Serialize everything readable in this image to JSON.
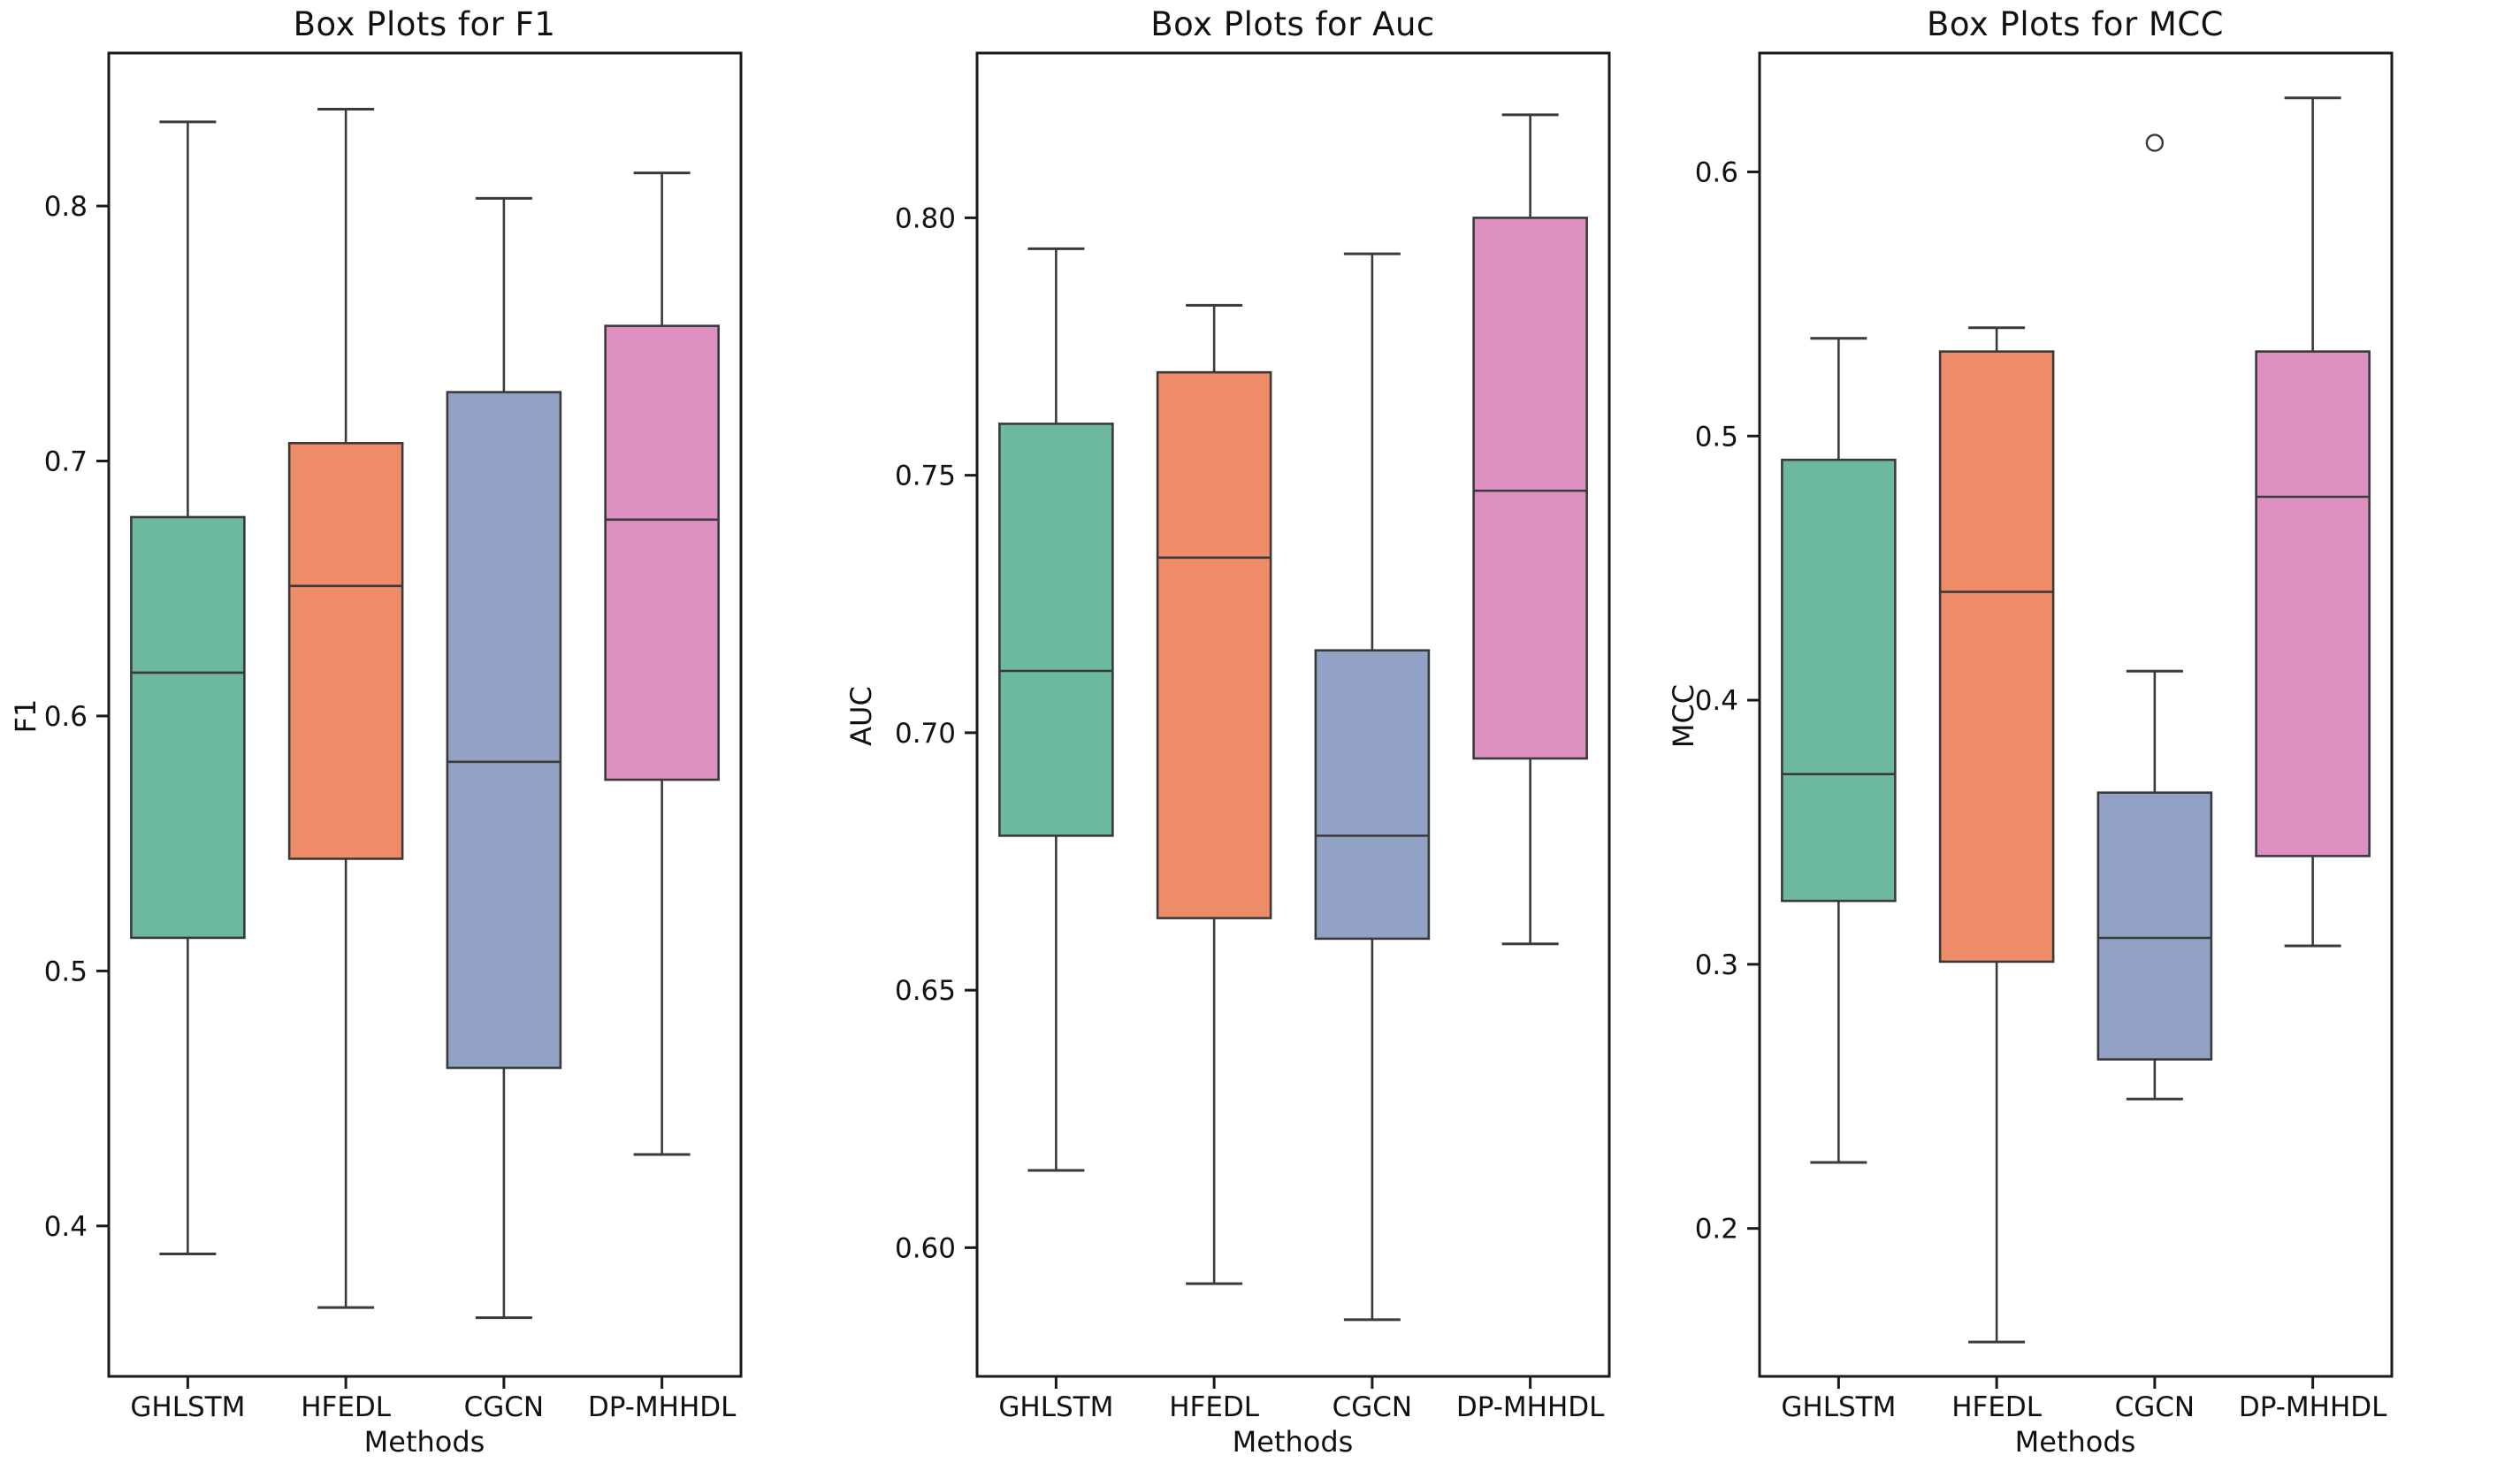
{
  "figure": {
    "background": "#ffffff",
    "spine_color": "#1a1a1a",
    "element_color": "#3a3a3a",
    "text_color": "#111111",
    "palette": {
      "GHLSTM": "#6db9a0",
      "HFEDL": "#ef8c68",
      "CGCN": "#92a2c4",
      "DP-MHHDL": "#de91c1"
    }
  },
  "chart_data": [
    {
      "type": "box",
      "title": "Box Plots for F1",
      "ylabel": "F1",
      "xlabel": "Methods",
      "grid": false,
      "legend": "none",
      "categories": [
        "GHLSTM",
        "HFEDL",
        "CGCN",
        "DP-MHHDL"
      ],
      "ylim": [
        0.341,
        0.86
      ],
      "yticks": [
        0.8,
        0.7,
        0.6,
        0.5,
        0.4
      ],
      "ytick_labels": [
        "0.8",
        "0.7",
        "0.6",
        "0.5",
        "0.4"
      ],
      "series": [
        {
          "name": "GHLSTM",
          "whislo": 0.389,
          "q1": 0.513,
          "med": 0.617,
          "q3": 0.678,
          "whishi": 0.833,
          "outliers": []
        },
        {
          "name": "HFEDL",
          "whislo": 0.368,
          "q1": 0.544,
          "med": 0.651,
          "q3": 0.707,
          "whishi": 0.838,
          "outliers": []
        },
        {
          "name": "CGCN",
          "whislo": 0.364,
          "q1": 0.462,
          "med": 0.582,
          "q3": 0.727,
          "whishi": 0.803,
          "outliers": []
        },
        {
          "name": "DP-MHHDL",
          "whislo": 0.428,
          "q1": 0.575,
          "med": 0.677,
          "q3": 0.753,
          "whishi": 0.813,
          "outliers": []
        }
      ]
    },
    {
      "type": "box",
      "title": "Box Plots for Auc",
      "ylabel": "AUC",
      "xlabel": "Methods",
      "grid": false,
      "legend": "none",
      "categories": [
        "GHLSTM",
        "HFEDL",
        "CGCN",
        "DP-MHHDL"
      ],
      "ylim": [
        0.575,
        0.832
      ],
      "yticks": [
        0.8,
        0.75,
        0.7,
        0.65,
        0.6
      ],
      "ytick_labels": [
        "0.80",
        "0.75",
        "0.70",
        "0.65",
        "0.60"
      ],
      "series": [
        {
          "name": "GHLSTM",
          "whislo": 0.615,
          "q1": 0.68,
          "med": 0.712,
          "q3": 0.76,
          "whishi": 0.794,
          "outliers": []
        },
        {
          "name": "HFEDL",
          "whislo": 0.593,
          "q1": 0.664,
          "med": 0.734,
          "q3": 0.77,
          "whishi": 0.783,
          "outliers": []
        },
        {
          "name": "CGCN",
          "whislo": 0.586,
          "q1": 0.66,
          "med": 0.68,
          "q3": 0.716,
          "whishi": 0.793,
          "outliers": []
        },
        {
          "name": "DP-MHHDL",
          "whislo": 0.659,
          "q1": 0.695,
          "med": 0.747,
          "q3": 0.8,
          "whishi": 0.82,
          "outliers": []
        }
      ]
    },
    {
      "type": "box",
      "title": "Box Plots for MCC",
      "ylabel": "MCC",
      "xlabel": "Methods",
      "grid": false,
      "legend": "none",
      "categories": [
        "GHLSTM",
        "HFEDL",
        "CGCN",
        "DP-MHHDL"
      ],
      "ylim": [
        0.144,
        0.645
      ],
      "yticks": [
        0.6,
        0.5,
        0.4,
        0.3,
        0.2
      ],
      "ytick_labels": [
        "0.6",
        "0.5",
        "0.4",
        "0.3",
        "0.2"
      ],
      "series": [
        {
          "name": "GHLSTM",
          "whislo": 0.225,
          "q1": 0.324,
          "med": 0.372,
          "q3": 0.491,
          "whishi": 0.537,
          "outliers": []
        },
        {
          "name": "HFEDL",
          "whislo": 0.157,
          "q1": 0.301,
          "med": 0.441,
          "q3": 0.532,
          "whishi": 0.541,
          "outliers": []
        },
        {
          "name": "CGCN",
          "whislo": 0.249,
          "q1": 0.264,
          "med": 0.31,
          "q3": 0.365,
          "whishi": 0.411,
          "outliers": [
            0.611
          ]
        },
        {
          "name": "DP-MHHDL",
          "whislo": 0.307,
          "q1": 0.341,
          "med": 0.477,
          "q3": 0.532,
          "whishi": 0.628,
          "outliers": []
        }
      ]
    }
  ]
}
